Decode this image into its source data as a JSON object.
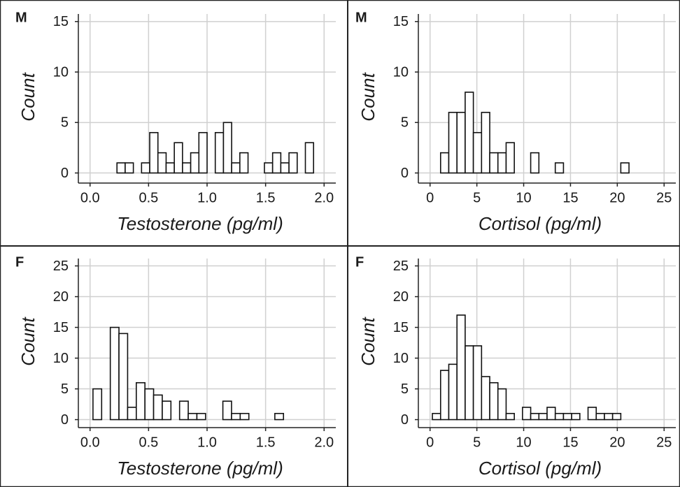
{
  "chart_data": [
    {
      "type": "histogram",
      "panel_label": "M",
      "xlabel": "Testosterone (pg/ml)",
      "ylabel": "Count",
      "grid": true,
      "color": "#ffffff",
      "bins": [
        0.02,
        0.09,
        0.16,
        0.23,
        0.3,
        0.37,
        0.44,
        0.51,
        0.58,
        0.65,
        0.72,
        0.79,
        0.86,
        0.93,
        1.0,
        1.07,
        1.14,
        1.21,
        1.28,
        1.35,
        1.42,
        1.49,
        1.56,
        1.63,
        1.7,
        1.77,
        1.84,
        1.91,
        1.98
      ],
      "values": [
        0,
        0,
        0,
        1,
        1,
        0,
        1,
        4,
        2,
        1,
        3,
        1,
        2,
        4,
        0,
        4,
        5,
        1,
        2,
        0,
        0,
        1,
        2,
        1,
        2,
        0,
        3,
        0
      ],
      "xlim": [
        -0.1,
        2.1
      ],
      "xticks": [
        {
          "value": 0,
          "label": "0.0"
        },
        0.5,
        {
          "value": 1,
          "label": "1.0"
        },
        1.5,
        {
          "value": 2,
          "label": "2.0"
        }
      ],
      "ylim": [
        -1,
        15.75
      ],
      "yticks": [
        0,
        5,
        10,
        15
      ]
    },
    {
      "type": "histogram",
      "panel_label": "M",
      "xlabel": "Cortisol (pg/ml)",
      "ylabel": "Count",
      "grid": true,
      "color": "#ffffff",
      "bins": [
        0.25,
        1.125,
        2,
        2.875,
        3.75,
        4.625,
        5.5,
        6.375,
        7.25,
        8.125,
        9,
        9.875,
        10.75,
        11.625,
        12.5,
        13.375,
        14.25,
        15.125,
        16,
        16.875,
        17.75,
        18.625,
        19.5,
        20.375,
        21.25,
        22.125,
        23,
        23.875,
        24.75
      ],
      "values": [
        0,
        2,
        6,
        6,
        8,
        4,
        6,
        2,
        2,
        3,
        0,
        0,
        2,
        0,
        0,
        1,
        0,
        0,
        0,
        0,
        0,
        0,
        0,
        1,
        0,
        0,
        0,
        0
      ],
      "xlim": [
        -1.25,
        26.25
      ],
      "xticks": [
        0,
        5,
        10,
        15,
        20,
        25
      ],
      "ylim": [
        -1,
        15.75
      ],
      "yticks": [
        0,
        5,
        10,
        15
      ]
    },
    {
      "type": "histogram",
      "panel_label": "F",
      "xlabel": "Testosterone (pg/ml)",
      "ylabel": "Count",
      "grid": true,
      "color": "#ffffff",
      "bins": [
        0.025,
        0.099,
        0.173,
        0.247,
        0.321,
        0.395,
        0.469,
        0.543,
        0.617,
        0.691,
        0.765,
        0.839,
        0.913,
        0.987,
        1.061,
        1.135,
        1.209,
        1.283,
        1.357,
        1.431,
        1.505,
        1.579,
        1.653,
        1.727,
        1.801,
        1.875,
        1.949
      ],
      "values": [
        5,
        0,
        15,
        14,
        2,
        6,
        5,
        4,
        3,
        0,
        3,
        1,
        1,
        0,
        0,
        3,
        1,
        1,
        0,
        0,
        0,
        1,
        0,
        0,
        0,
        0
      ],
      "xlim": [
        -0.1,
        2.1
      ],
      "xticks": [
        {
          "value": 0,
          "label": "0.0"
        },
        0.5,
        {
          "value": 1,
          "label": "1.0"
        },
        1.5,
        {
          "value": 2,
          "label": "2.0"
        }
      ],
      "ylim": [
        -1.3,
        26.2
      ],
      "yticks": [
        0,
        5,
        10,
        15,
        20,
        25
      ]
    },
    {
      "type": "histogram",
      "panel_label": "F",
      "xlabel": "Cortisol (pg/ml)",
      "ylabel": "Count",
      "grid": true,
      "color": "#ffffff",
      "bins": [
        0.25,
        1.125,
        2,
        2.875,
        3.75,
        4.625,
        5.5,
        6.375,
        7.25,
        8.125,
        9,
        9.875,
        10.75,
        11.625,
        12.5,
        13.375,
        14.25,
        15.125,
        16,
        16.875,
        17.75,
        18.625,
        19.5,
        20.375,
        21.25,
        22.125,
        23,
        23.875,
        24.75
      ],
      "values": [
        1,
        8,
        9,
        17,
        12,
        12,
        7,
        6,
        5,
        1,
        0,
        2,
        1,
        1,
        2,
        1,
        1,
        1,
        0,
        2,
        1,
        1,
        1,
        0,
        0,
        0,
        0,
        0
      ],
      "xlim": [
        -1.25,
        26.25
      ],
      "xticks": [
        0,
        5,
        10,
        15,
        20,
        25
      ],
      "ylim": [
        -1.3,
        26.2
      ],
      "yticks": [
        0,
        5,
        10,
        15,
        20,
        25
      ]
    }
  ]
}
